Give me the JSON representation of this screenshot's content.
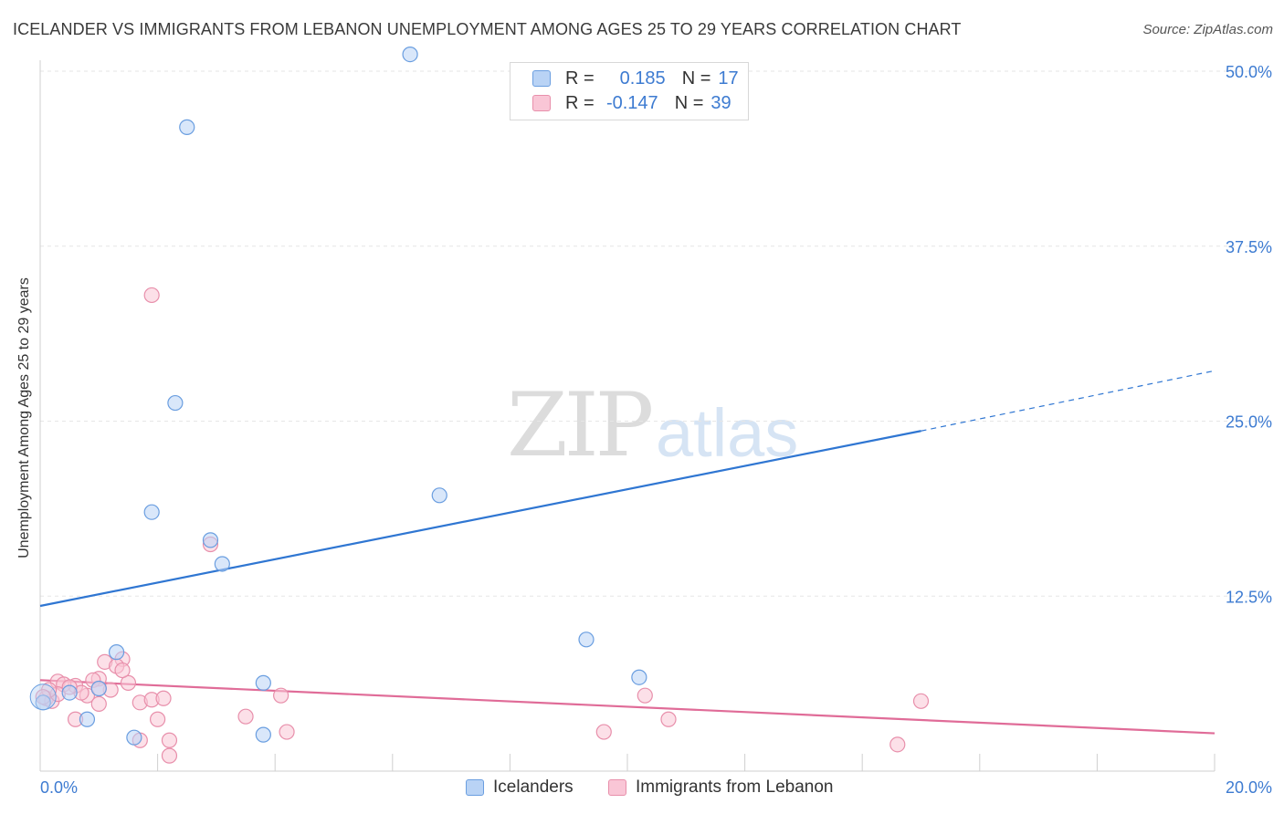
{
  "header": {
    "title": "ICELANDER VS IMMIGRANTS FROM LEBANON UNEMPLOYMENT AMONG AGES 25 TO 29 YEARS CORRELATION CHART",
    "source": "Source: ZipAtlas.com"
  },
  "watermark": {
    "zip": "ZIP",
    "atlas": "atlas"
  },
  "legend": {
    "rows": [
      {
        "r_label": "R =",
        "r_value": "0.185",
        "n_label": "N =",
        "n_value": "17"
      },
      {
        "r_label": "R =",
        "r_value": "-0.147",
        "n_label": "N =",
        "n_value": "39"
      }
    ]
  },
  "bottom_legend": {
    "s1": "Icelanders",
    "s2": "Immigrants from Lebanon"
  },
  "colors": {
    "blue_fill": "#b9d3f5",
    "blue_stroke": "#6a9ee0",
    "blue_line": "#2f76d2",
    "pink_fill": "#f9c6d6",
    "pink_stroke": "#e88fab",
    "pink_line": "#e06c98",
    "tick_text": "#3d7bd1"
  },
  "chart_data": {
    "type": "scatter",
    "title": "ICELANDER VS IMMIGRANTS FROM LEBANON UNEMPLOYMENT AMONG AGES 25 TO 29 YEARS CORRELATION CHART",
    "xlabel": "",
    "ylabel": "Unemployment Among Ages 25 to 29 years",
    "xlim": [
      0,
      20
    ],
    "ylim": [
      0,
      50
    ],
    "x_tick_labels": [
      {
        "value": 0,
        "label": "0.0%"
      },
      {
        "value": 20,
        "label": "20.0%"
      }
    ],
    "y_tick_labels": [
      {
        "value": 12.5,
        "label": "12.5%"
      },
      {
        "value": 25,
        "label": "25.0%"
      },
      {
        "value": 37.5,
        "label": "37.5%"
      },
      {
        "value": 50,
        "label": "50.0%"
      }
    ],
    "series": [
      {
        "name": "Icelanders",
        "color": "blue",
        "points": [
          [
            6.3,
            51.2
          ],
          [
            2.5,
            46.0
          ],
          [
            2.3,
            26.3
          ],
          [
            1.9,
            18.5
          ],
          [
            2.9,
            16.5
          ],
          [
            3.1,
            14.8
          ],
          [
            6.8,
            19.7
          ],
          [
            9.3,
            9.4
          ],
          [
            1.3,
            8.5
          ],
          [
            0.5,
            5.6
          ],
          [
            1.0,
            5.9
          ],
          [
            0.8,
            3.7
          ],
          [
            1.6,
            2.4
          ],
          [
            3.8,
            6.3
          ],
          [
            3.8,
            2.6
          ],
          [
            10.2,
            6.7
          ],
          [
            0.05,
            4.9
          ]
        ],
        "trend": {
          "x_start": 0,
          "y_start": 11.8,
          "x_end": 15.0,
          "y_end": 24.3,
          "x_dash_end": 20.0,
          "y_dash_end": 28.6
        }
      },
      {
        "name": "Immigrants from Lebanon",
        "color": "pink",
        "points": [
          [
            1.9,
            34.0
          ],
          [
            2.9,
            16.2
          ],
          [
            0.3,
            6.4
          ],
          [
            0.6,
            6.1
          ],
          [
            1.0,
            6.6
          ],
          [
            1.1,
            7.8
          ],
          [
            1.2,
            5.8
          ],
          [
            1.4,
            8.0
          ],
          [
            1.5,
            6.3
          ],
          [
            1.7,
            4.9
          ],
          [
            1.9,
            5.1
          ],
          [
            2.1,
            5.2
          ],
          [
            2.2,
            1.1
          ],
          [
            2.2,
            2.2
          ],
          [
            1.3,
            7.5
          ],
          [
            0.8,
            5.4
          ],
          [
            0.9,
            6.5
          ],
          [
            0.6,
            3.7
          ],
          [
            1.0,
            5.9
          ],
          [
            1.7,
            2.2
          ],
          [
            2.0,
            3.7
          ],
          [
            3.5,
            3.9
          ],
          [
            4.1,
            5.4
          ],
          [
            4.2,
            2.8
          ],
          [
            9.6,
            2.8
          ],
          [
            10.3,
            5.4
          ],
          [
            10.7,
            3.7
          ],
          [
            14.6,
            1.9
          ],
          [
            15.0,
            5.0
          ],
          [
            0.1,
            5.2
          ],
          [
            0.2,
            5.0
          ],
          [
            0.4,
            6.2
          ],
          [
            1.0,
            4.8
          ],
          [
            0.7,
            5.6
          ],
          [
            0.3,
            5.5
          ],
          [
            1.4,
            7.2
          ],
          [
            0.5,
            6.0
          ],
          [
            0.15,
            5.8
          ],
          [
            0.05,
            5.3
          ]
        ],
        "trend": {
          "x_start": 0,
          "y_start": 6.5,
          "x_end": 20.0,
          "y_end": 2.7
        }
      }
    ]
  }
}
